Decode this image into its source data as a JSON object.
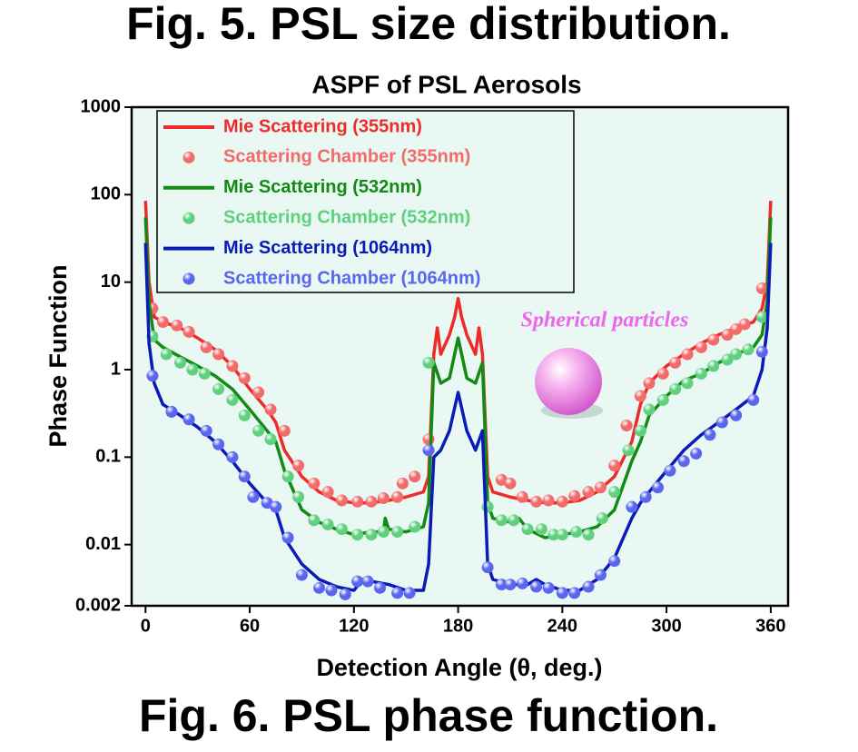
{
  "heading": "Fig. 5. PSL size distribution.",
  "footer": "Fig. 6. PSL phase function.",
  "chart_data": {
    "type": "line",
    "title": "ASPF of PSL Aerosols",
    "x_label": "Detection Angle (θ, deg.)",
    "y_label": "Phase Function",
    "annotation": "Spherical particles",
    "xlim": [
      -8,
      370
    ],
    "xticks": [
      0,
      60,
      120,
      180,
      240,
      300,
      360
    ],
    "ylim": [
      0.002,
      1000
    ],
    "yticks": [
      0.002,
      0.01,
      0.1,
      1,
      10,
      100,
      1000
    ],
    "y_scale": "log",
    "legend": "upper left",
    "series": [
      {
        "name": "Mie Scattering (355nm)",
        "mode": "line",
        "color": "#ee2b2b",
        "x": [
          0,
          2,
          5,
          10,
          20,
          30,
          40,
          50,
          60,
          70,
          75,
          80,
          90,
          100,
          110,
          120,
          130,
          140,
          150,
          160,
          163,
          166,
          168,
          170,
          175,
          178,
          180,
          182,
          185,
          190,
          192,
          194,
          197,
          200,
          210,
          220,
          230,
          240,
          250,
          260,
          270,
          280,
          285,
          290,
          300,
          310,
          320,
          330,
          340,
          350,
          355,
          358,
          360
        ],
        "values": [
          85,
          10,
          4,
          3.5,
          3,
          2.3,
          1.7,
          1.1,
          0.6,
          0.35,
          0.25,
          0.12,
          0.06,
          0.04,
          0.032,
          0.03,
          0.03,
          0.032,
          0.035,
          0.04,
          0.06,
          1.5,
          3,
          1.5,
          2.5,
          4,
          6.5,
          4,
          2.5,
          1.5,
          3,
          1.5,
          0.06,
          0.04,
          0.035,
          0.032,
          0.03,
          0.03,
          0.032,
          0.04,
          0.06,
          0.15,
          0.4,
          0.7,
          1.1,
          1.5,
          2,
          2.5,
          3,
          3.5,
          5,
          10,
          85
        ]
      },
      {
        "name": "Scattering Chamber (355nm)",
        "mode": "markers",
        "color": "#f26a6a",
        "x": [
          4,
          10,
          18,
          25,
          35,
          42,
          50,
          57,
          65,
          72,
          80,
          88,
          97,
          105,
          113,
          122,
          130,
          137,
          145,
          148,
          155,
          163,
          205,
          210,
          217,
          225,
          232,
          240,
          247,
          255,
          262,
          270,
          277,
          285,
          290,
          298,
          305,
          312,
          320,
          327,
          335,
          340,
          345,
          355
        ],
        "values": [
          5,
          3.5,
          3.2,
          2.7,
          1.8,
          1.5,
          1.1,
          0.8,
          0.55,
          0.35,
          0.2,
          0.08,
          0.05,
          0.04,
          0.032,
          0.031,
          0.031,
          0.034,
          0.035,
          0.05,
          0.06,
          0.16,
          0.055,
          0.05,
          0.035,
          0.031,
          0.032,
          0.031,
          0.036,
          0.04,
          0.045,
          0.08,
          0.23,
          0.5,
          0.7,
          0.9,
          1.2,
          1.5,
          1.8,
          2.2,
          2.5,
          2.9,
          3.3,
          8.5
        ]
      },
      {
        "name": "Mie Scattering (532nm)",
        "mode": "line",
        "color": "#138a13",
        "x": [
          0,
          2,
          5,
          10,
          20,
          30,
          40,
          50,
          60,
          70,
          75,
          80,
          90,
          100,
          110,
          120,
          130,
          137,
          138,
          140,
          150,
          160,
          163,
          166,
          170,
          175,
          180,
          185,
          190,
          194,
          197,
          200,
          210,
          215,
          220,
          230,
          240,
          250,
          260,
          270,
          280,
          285,
          290,
          300,
          310,
          320,
          330,
          340,
          350,
          355,
          358,
          360
        ],
        "values": [
          55,
          6,
          2.2,
          1.8,
          1.4,
          1.1,
          0.85,
          0.6,
          0.35,
          0.2,
          0.15,
          0.07,
          0.025,
          0.018,
          0.015,
          0.013,
          0.014,
          0.014,
          0.02,
          0.015,
          0.014,
          0.016,
          0.03,
          1.2,
          0.7,
          0.8,
          2.3,
          0.8,
          0.7,
          1.2,
          0.03,
          0.02,
          0.018,
          0.02,
          0.015,
          0.012,
          0.013,
          0.014,
          0.016,
          0.025,
          0.09,
          0.15,
          0.3,
          0.5,
          0.75,
          0.9,
          1.2,
          1.5,
          1.8,
          2.5,
          6,
          55
        ]
      },
      {
        "name": "Scattering Chamber (532nm)",
        "mode": "markers",
        "color": "#5fd07e",
        "x": [
          4,
          12,
          20,
          27,
          34,
          42,
          50,
          57,
          65,
          72,
          82,
          88,
          97,
          105,
          113,
          122,
          130,
          137,
          145,
          155,
          163,
          197,
          205,
          212,
          220,
          228,
          235,
          240,
          248,
          255,
          263,
          270,
          278,
          285,
          290,
          298,
          305,
          312,
          320,
          327,
          335,
          340,
          347,
          355
        ],
        "values": [
          2.4,
          1.5,
          1.2,
          1,
          0.9,
          0.6,
          0.45,
          0.3,
          0.2,
          0.16,
          0.06,
          0.035,
          0.019,
          0.017,
          0.015,
          0.013,
          0.013,
          0.014,
          0.014,
          0.016,
          1.2,
          0.027,
          0.019,
          0.019,
          0.015,
          0.015,
          0.013,
          0.013,
          0.014,
          0.013,
          0.02,
          0.04,
          0.12,
          0.2,
          0.35,
          0.45,
          0.6,
          0.7,
          0.9,
          1.1,
          1.3,
          1.5,
          1.7,
          4
        ]
      },
      {
        "name": "Mie Scattering (1064nm)",
        "mode": "line",
        "color": "#0a1cb8",
        "x": [
          0,
          2,
          5,
          10,
          20,
          30,
          40,
          50,
          60,
          70,
          75,
          80,
          90,
          100,
          110,
          120,
          125,
          130,
          140,
          150,
          160,
          163,
          166,
          170,
          175,
          180,
          185,
          190,
          194,
          197,
          200,
          210,
          220,
          225,
          230,
          240,
          250,
          260,
          270,
          280,
          285,
          290,
          300,
          310,
          320,
          330,
          340,
          350,
          355,
          358,
          360
        ],
        "values": [
          28,
          2,
          0.7,
          0.4,
          0.3,
          0.22,
          0.15,
          0.09,
          0.05,
          0.03,
          0.025,
          0.012,
          0.006,
          0.004,
          0.0033,
          0.003,
          0.004,
          0.0038,
          0.0035,
          0.003,
          0.003,
          0.006,
          0.1,
          0.12,
          0.2,
          0.55,
          0.2,
          0.12,
          0.2,
          0.006,
          0.004,
          0.0035,
          0.0035,
          0.004,
          0.0035,
          0.003,
          0.003,
          0.004,
          0.007,
          0.02,
          0.03,
          0.04,
          0.07,
          0.12,
          0.18,
          0.25,
          0.35,
          0.5,
          1,
          3,
          28
        ]
      },
      {
        "name": "Scattering Chamber (1064nm)",
        "mode": "markers",
        "color": "#5a66ee",
        "x": [
          4,
          15,
          25,
          35,
          42,
          50,
          57,
          62,
          70,
          75,
          82,
          90,
          100,
          107,
          115,
          122,
          128,
          135,
          145,
          152,
          163,
          197,
          205,
          210,
          217,
          225,
          232,
          240,
          247,
          255,
          262,
          270,
          280,
          288,
          295,
          302,
          310,
          317,
          325,
          332,
          340,
          350,
          355
        ],
        "values": [
          0.85,
          0.33,
          0.27,
          0.2,
          0.14,
          0.1,
          0.06,
          0.035,
          0.03,
          0.027,
          0.012,
          0.0045,
          0.0032,
          0.003,
          0.0027,
          0.0038,
          0.0038,
          0.0032,
          0.0028,
          0.0028,
          0.12,
          0.0055,
          0.0035,
          0.0035,
          0.0036,
          0.0033,
          0.0032,
          0.0028,
          0.0028,
          0.0033,
          0.0045,
          0.0065,
          0.027,
          0.035,
          0.045,
          0.07,
          0.09,
          0.11,
          0.18,
          0.25,
          0.3,
          0.45,
          1.6
        ]
      }
    ]
  }
}
